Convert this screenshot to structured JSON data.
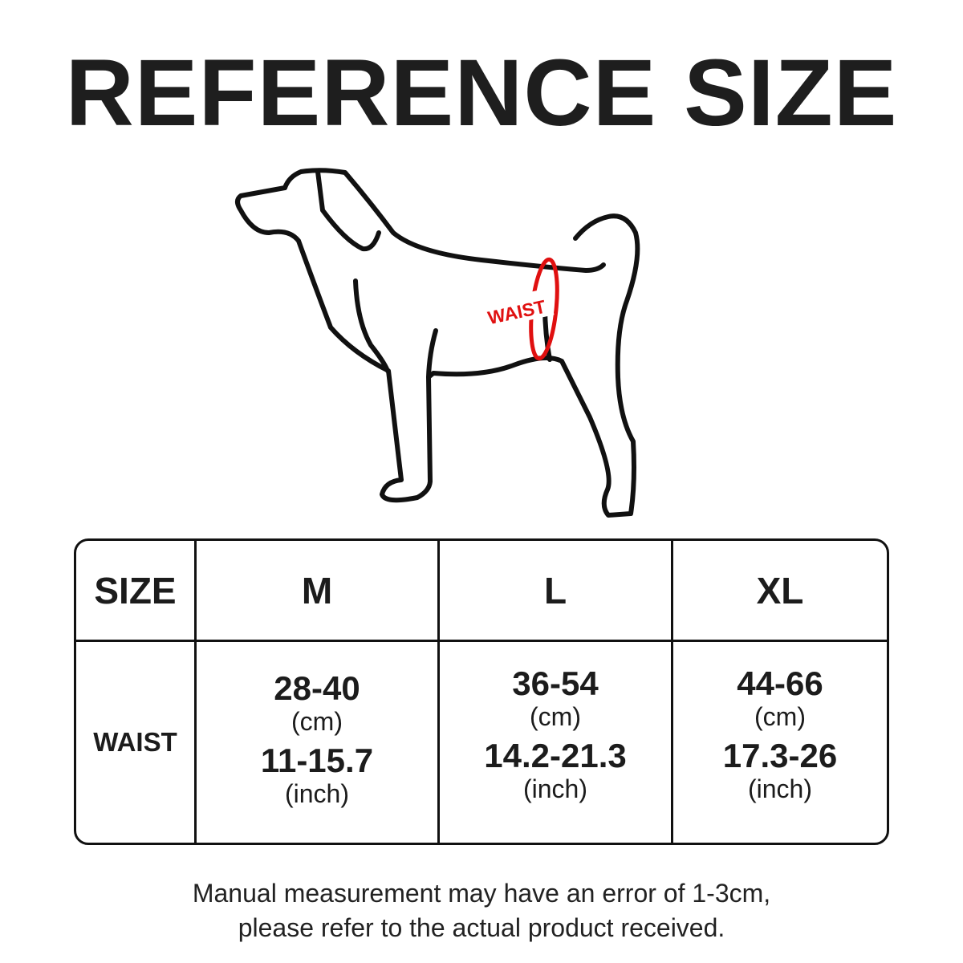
{
  "title": "REFERENCE SIZE",
  "illustration": {
    "label": "WAIST",
    "accent_color": "#e01010"
  },
  "table": {
    "header_label": "SIZE",
    "row_label": "WAIST",
    "sizes": [
      {
        "size": "M",
        "cm": "28-40",
        "cm_unit": "(cm)",
        "inch": "11-15.7",
        "inch_unit": "(inch)"
      },
      {
        "size": "L",
        "cm": "36-54",
        "cm_unit": "(cm)",
        "inch": "14.2-21.3",
        "inch_unit": "(inch)"
      },
      {
        "size": "XL",
        "cm": "44-66",
        "cm_unit": "(cm)",
        "inch": "17.3-26",
        "inch_unit": "(inch)"
      }
    ]
  },
  "note": {
    "line1": "Manual measurement may have an error of 1-3cm,",
    "line2": "please refer to the actual product received."
  }
}
